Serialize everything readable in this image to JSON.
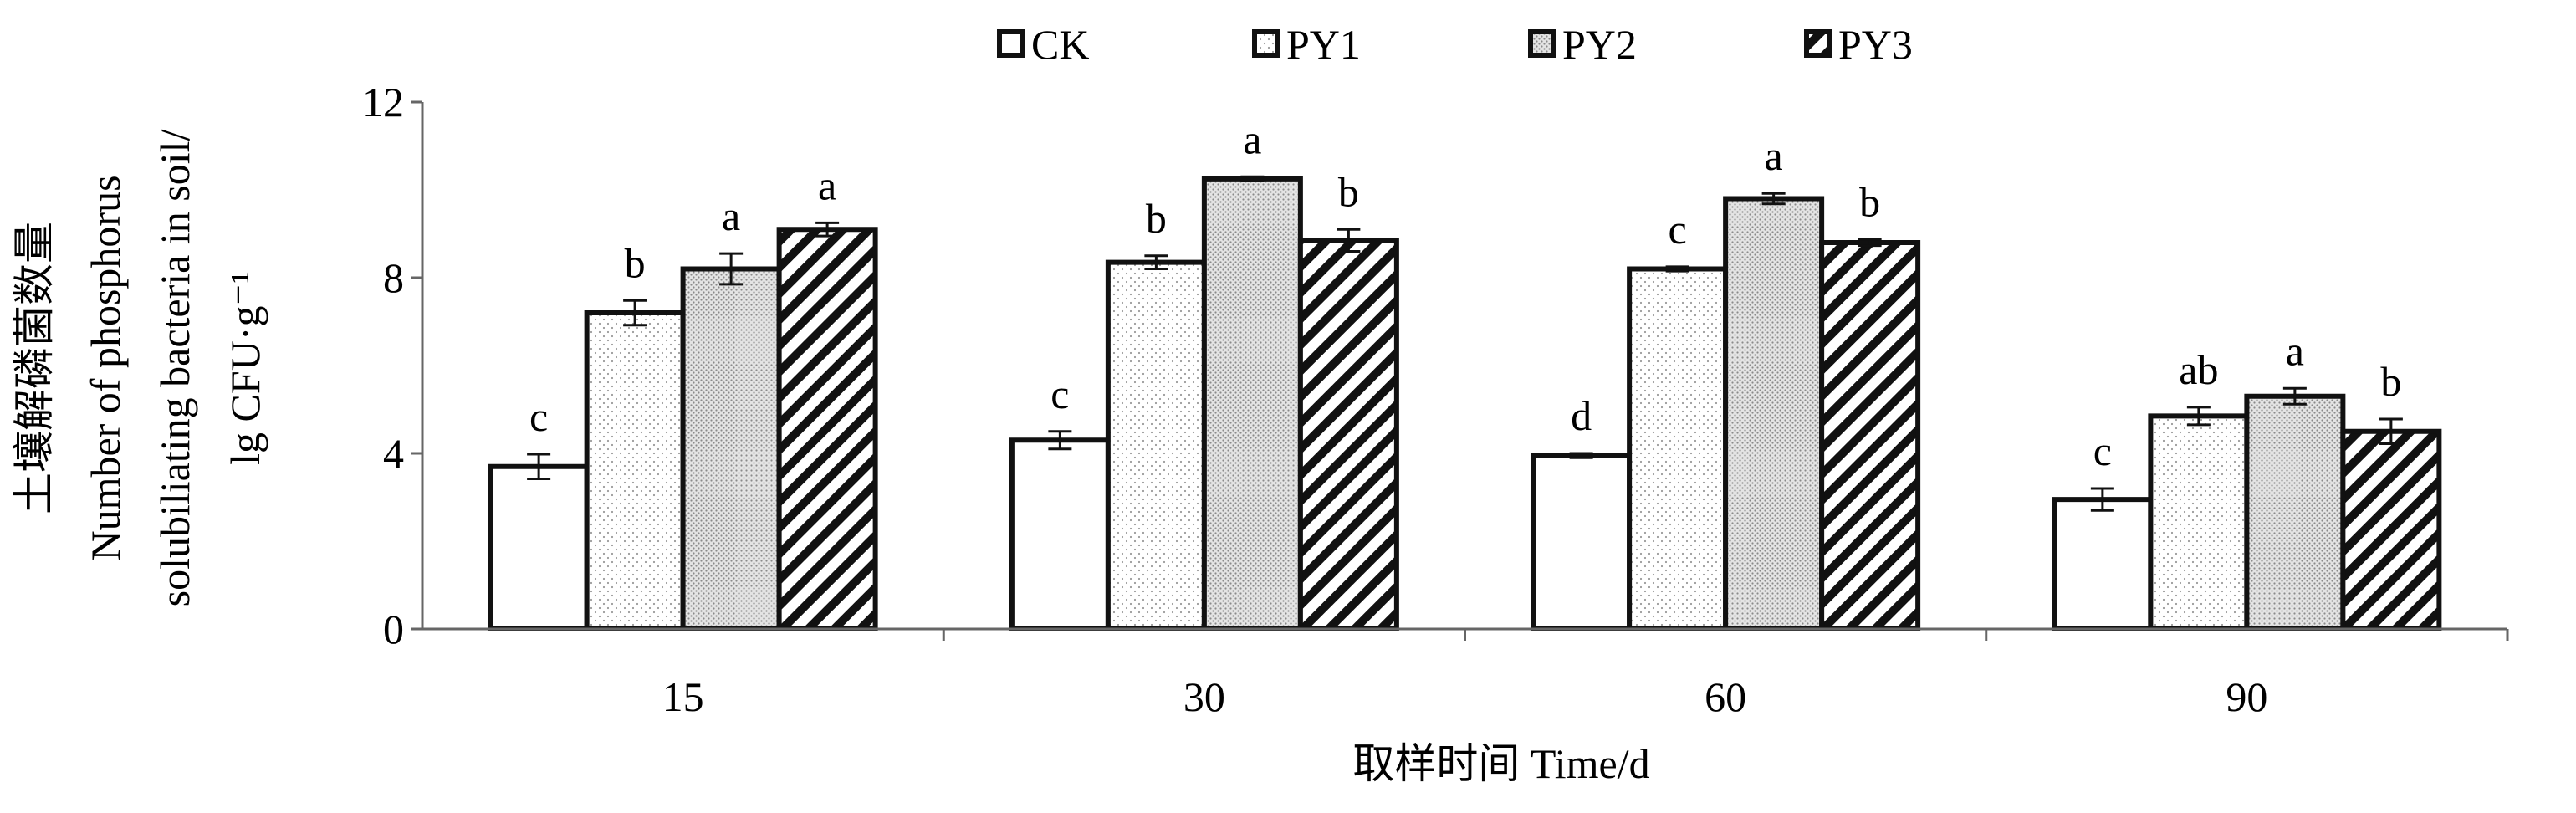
{
  "chart_data": {
    "type": "bar",
    "title": "",
    "xlabel": "取样时间 Time/d",
    "ylabel_lines": [
      "土壤解磷菌数量",
      "Number of phosphorus",
      "solubiliating bacteria in soil/",
      "lg CFU·g⁻¹"
    ],
    "categories": [
      "15",
      "30",
      "60",
      "90"
    ],
    "ylim": [
      0,
      12
    ],
    "yticks": [
      "0",
      "4",
      "8",
      "12"
    ],
    "legend_position": "top",
    "series": [
      {
        "name": "CK",
        "fill": "white",
        "values": [
          3.7,
          4.3,
          3.95,
          2.95
        ],
        "errors": [
          0.28,
          0.2,
          0.05,
          0.25
        ],
        "labels": [
          "c",
          "c",
          "d",
          "c"
        ]
      },
      {
        "name": "PY1",
        "fill": "dots",
        "values": [
          7.2,
          8.35,
          8.2,
          4.85
        ],
        "errors": [
          0.28,
          0.15,
          0.05,
          0.2
        ],
        "labels": [
          "b",
          "b",
          "c",
          "ab"
        ]
      },
      {
        "name": "PY2",
        "fill": "dense",
        "values": [
          8.2,
          10.25,
          9.8,
          5.3
        ],
        "errors": [
          0.35,
          0.05,
          0.12,
          0.18
        ],
        "labels": [
          "a",
          "a",
          "a",
          "a"
        ]
      },
      {
        "name": "PY3",
        "fill": "hatch",
        "values": [
          9.1,
          8.85,
          8.8,
          4.5
        ],
        "errors": [
          0.15,
          0.25,
          0.07,
          0.28
        ],
        "labels": [
          "a",
          "b",
          "b",
          "b"
        ]
      }
    ],
    "grid": false
  }
}
